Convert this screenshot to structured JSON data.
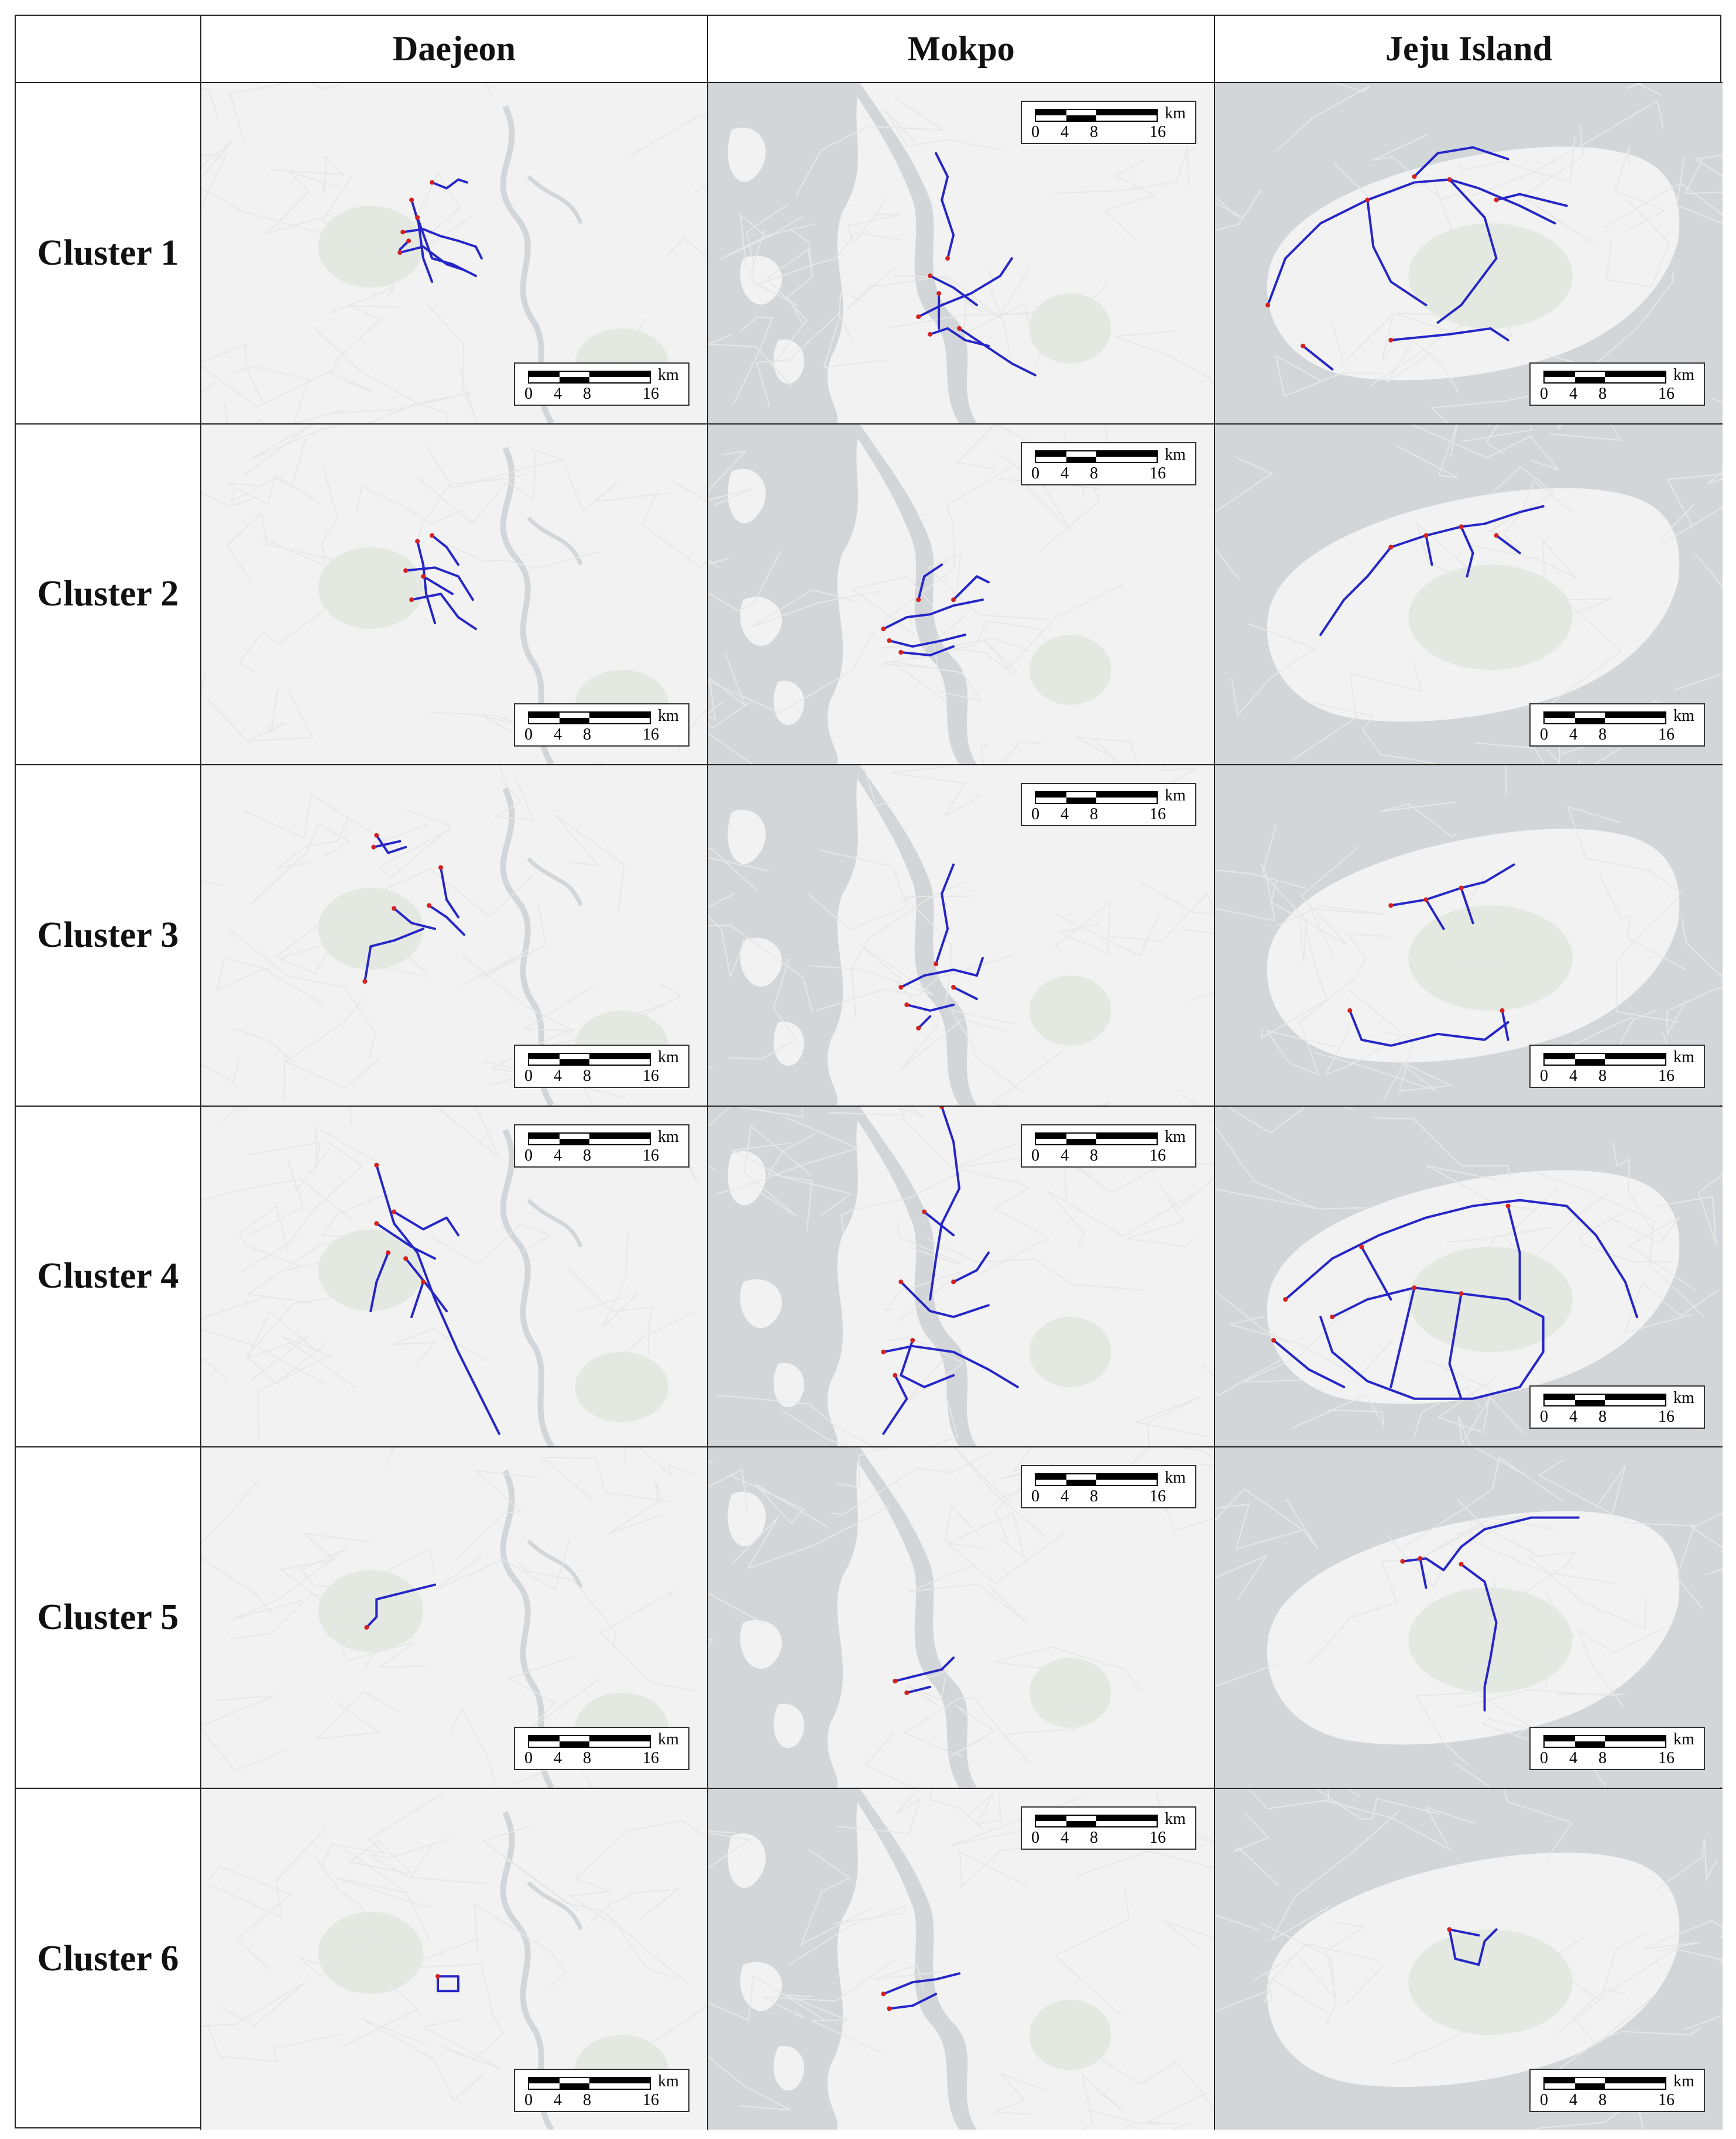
{
  "columns": [
    "Daejeon",
    "Mokpo",
    "Jeju Island"
  ],
  "rows": [
    "Cluster 1",
    "Cluster 2",
    "Cluster 3",
    "Cluster 4",
    "Cluster 5",
    "Cluster 6"
  ],
  "scale_bar": {
    "unit": "km",
    "ticks": [
      "0",
      "4",
      "8",
      "16"
    ]
  },
  "map_colors": {
    "land": "#f1f2f1",
    "water": "#d3d6d8",
    "park": "#e3e8e1",
    "roads": "#e6e7e6",
    "trajectory": "#2626c8",
    "stop_points": "#d42020"
  }
}
